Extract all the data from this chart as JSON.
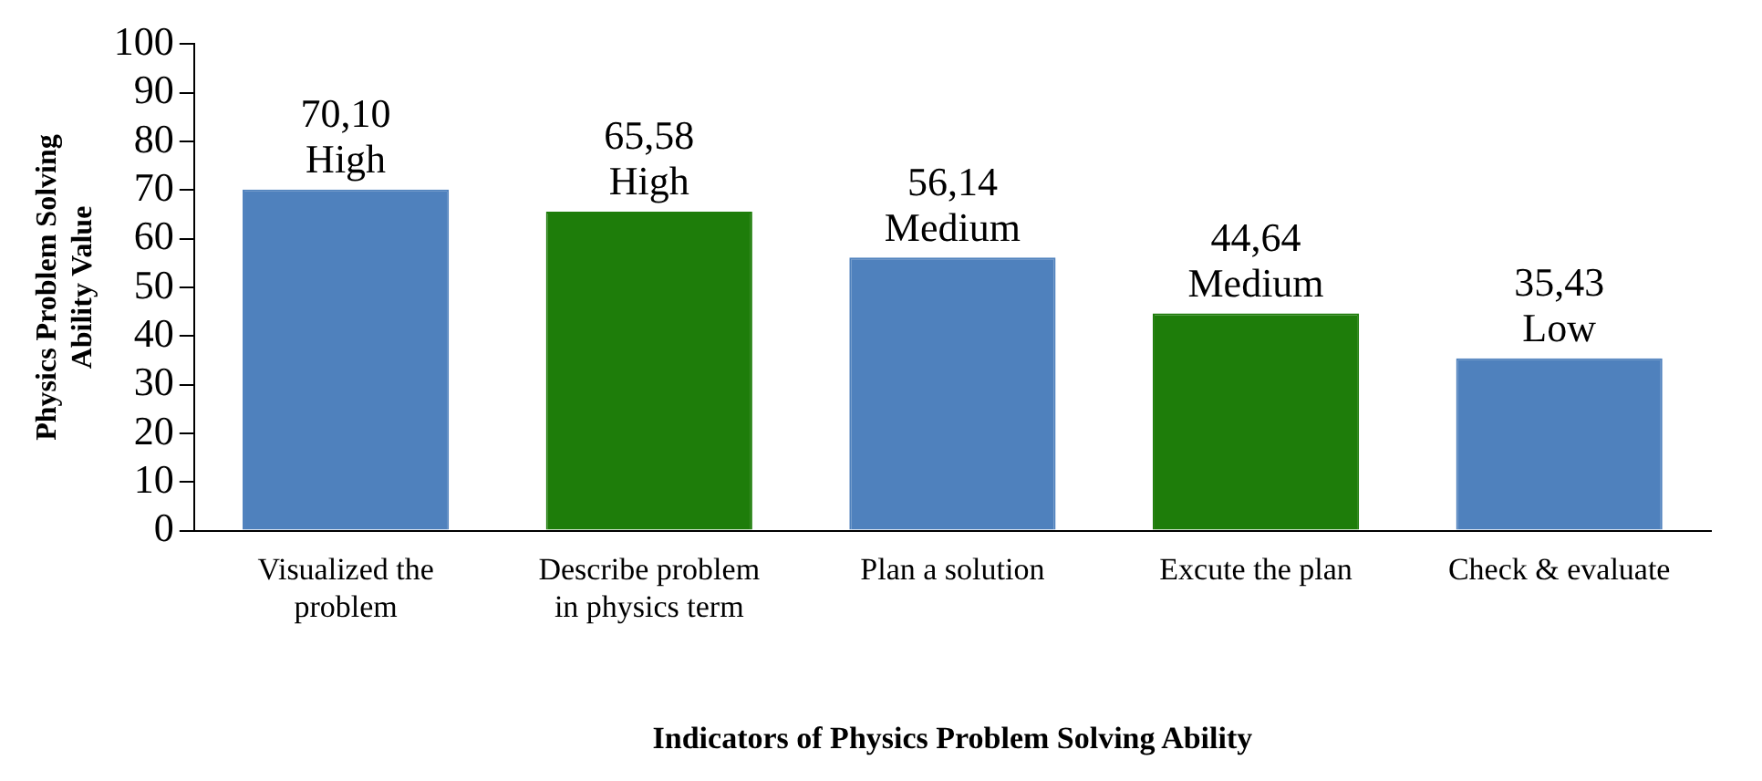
{
  "chart_data": {
    "type": "bar",
    "xlabel": "Indicators of Physics Problem Solving Ability",
    "ylabel": "Physics Problem Solving Ability Value",
    "categories": [
      "Visualized the problem",
      "Describe problem in physics term",
      "Plan a solution",
      "Excute the plan",
      "Check & evaluate"
    ],
    "values": [
      70.1,
      65.58,
      56.14,
      44.64,
      35.43
    ],
    "colors": [
      "#4f81bd",
      "#1e7d0a",
      "#4f81bd",
      "#1e7d0a",
      "#4f81bd"
    ],
    "value_labels": [
      "70,10\nHigh",
      "65,58\nHigh",
      "56,14\nMedium",
      "44,64\nMedium",
      "35,43\nLow"
    ],
    "ylim": [
      0,
      100
    ],
    "yticks": [
      0,
      10,
      20,
      30,
      40,
      50,
      60,
      70,
      80,
      90,
      100
    ],
    "grid": false,
    "legend": false
  }
}
